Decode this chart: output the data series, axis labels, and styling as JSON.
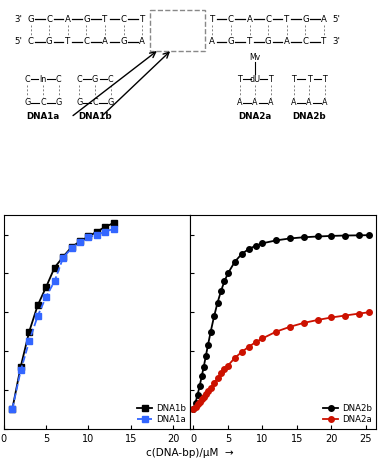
{
  "left": {
    "DNA1a": {
      "x": [
        1,
        2,
        3,
        4,
        5,
        6,
        7,
        8,
        9,
        10,
        11,
        12,
        13
      ],
      "y": [
        1.0,
        3.0,
        4.5,
        5.8,
        6.8,
        7.6,
        8.8,
        9.3,
        9.6,
        9.85,
        10.0,
        10.15,
        10.3
      ],
      "color": "#3366ff",
      "marker": "s",
      "label": "DNA1a",
      "linestyle": "--"
    },
    "DNA1b": {
      "x": [
        1,
        2,
        3,
        4,
        5,
        6,
        7,
        8,
        9,
        10,
        11,
        12,
        13
      ],
      "y": [
        1.0,
        3.2,
        5.0,
        6.35,
        7.3,
        8.3,
        8.85,
        9.35,
        9.65,
        9.9,
        10.15,
        10.4,
        10.6
      ],
      "color": "#000000",
      "marker": "s",
      "label": "DNA1b",
      "linestyle": "-"
    },
    "xlim": [
      0,
      22
    ],
    "ylim": [
      0,
      11
    ],
    "yticks": [
      0,
      2,
      4,
      6,
      8,
      10
    ],
    "xticks": [
      0,
      5,
      10,
      15,
      20
    ]
  },
  "right": {
    "DNA2a": {
      "x": [
        0,
        0.3,
        0.6,
        0.9,
        1.2,
        1.5,
        1.8,
        2.1,
        2.5,
        3.0,
        3.5,
        4.0,
        4.5,
        5.0,
        6.0,
        7.0,
        8.0,
        9.0,
        10.0,
        12.0,
        14.0,
        16.0,
        18.0,
        20.0,
        22.0,
        24.0,
        25.5
      ],
      "y": [
        1.0,
        1.12,
        1.25,
        1.38,
        1.52,
        1.65,
        1.78,
        1.92,
        2.1,
        2.35,
        2.6,
        2.85,
        3.05,
        3.25,
        3.65,
        3.95,
        4.22,
        4.45,
        4.65,
        5.0,
        5.25,
        5.45,
        5.6,
        5.73,
        5.83,
        5.93,
        6.0
      ],
      "color": "#cc1100",
      "marker": "o",
      "label": "DNA2a",
      "linestyle": "-"
    },
    "DNA2b": {
      "x": [
        0,
        0.3,
        0.6,
        0.9,
        1.2,
        1.5,
        1.8,
        2.1,
        2.5,
        3.0,
        3.5,
        4.0,
        4.5,
        5.0,
        6.0,
        7.0,
        8.0,
        9.0,
        10.0,
        12.0,
        14.0,
        16.0,
        18.0,
        20.0,
        22.0,
        24.0,
        25.5
      ],
      "y": [
        1.0,
        1.35,
        1.75,
        2.2,
        2.7,
        3.2,
        3.75,
        4.3,
        5.0,
        5.8,
        6.5,
        7.1,
        7.6,
        8.0,
        8.6,
        9.0,
        9.25,
        9.42,
        9.55,
        9.7,
        9.8,
        9.86,
        9.9,
        9.93,
        9.95,
        9.96,
        9.97
      ],
      "color": "#000000",
      "marker": "o",
      "label": "DNA2b",
      "linestyle": "-"
    },
    "xlim": [
      -0.5,
      26.5
    ],
    "ylim": [
      0,
      11
    ],
    "yticks": [
      0,
      2,
      4,
      6,
      8,
      10
    ],
    "xticks": [
      0,
      5,
      10,
      15,
      20,
      25
    ]
  },
  "markersize": 4,
  "linewidth": 1.3,
  "background_color": "#ffffff"
}
